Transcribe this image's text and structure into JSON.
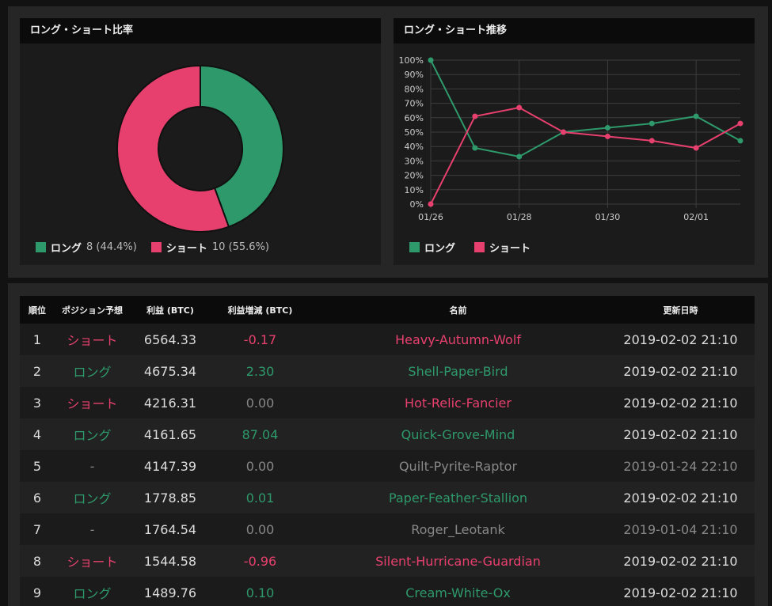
{
  "colors": {
    "long": "#2e9a6b",
    "short": "#e8406e",
    "neutral": "#888888"
  },
  "pie_panel": {
    "title": "ロング・ショート比率",
    "legend": [
      {
        "label": "ロング",
        "value": "8 (44.4%)"
      },
      {
        "label": "ショート",
        "value": "10 (55.6%)"
      }
    ]
  },
  "line_panel": {
    "title": "ロング・ショート推移",
    "legend": [
      {
        "label": "ロング"
      },
      {
        "label": "ショート"
      }
    ]
  },
  "chart_data": [
    {
      "type": "pie",
      "variant": "donut",
      "labels": [
        "ロング",
        "ショート"
      ],
      "values": [
        8,
        10
      ],
      "percent": [
        44.4,
        55.6
      ]
    },
    {
      "type": "line",
      "x": [
        0,
        1,
        2,
        3,
        4,
        5,
        6,
        7
      ],
      "x_tick_labels": [
        "01/26",
        "01/28",
        "01/30",
        "02/01"
      ],
      "ylim": [
        0,
        100
      ],
      "y_ticks": [
        "0%",
        "10%",
        "20%",
        "30%",
        "40%",
        "50%",
        "60%",
        "70%",
        "80%",
        "90%",
        "100%"
      ],
      "grid": true,
      "legend_position": "bottom-left",
      "series": [
        {
          "name": "ロング",
          "values": [
            100,
            39,
            33,
            50,
            53,
            56,
            61,
            44
          ]
        },
        {
          "name": "ショート",
          "values": [
            0,
            61,
            67,
            50,
            47,
            44,
            39,
            56
          ]
        }
      ]
    }
  ],
  "table": {
    "headers": [
      "順位",
      "ポジション予想",
      "利益 (BTC)",
      "利益増減 (BTC)",
      "名前",
      "更新日時"
    ],
    "rows": [
      {
        "rank": "1",
        "position": "ショート",
        "pos_kind": "short",
        "profit": "6564.33",
        "change": "-0.17",
        "change_kind": "short",
        "name": "Heavy-Autumn-Wolf",
        "name_kind": "short",
        "updated": "2019-02-02 21:10",
        "updated_kind": "normal"
      },
      {
        "rank": "2",
        "position": "ロング",
        "pos_kind": "long",
        "profit": "4675.34",
        "change": "2.30",
        "change_kind": "long",
        "name": "Shell-Paper-Bird",
        "name_kind": "long",
        "updated": "2019-02-02 21:10",
        "updated_kind": "normal"
      },
      {
        "rank": "3",
        "position": "ショート",
        "pos_kind": "short",
        "profit": "4216.31",
        "change": "0.00",
        "change_kind": "neutral",
        "name": "Hot-Relic-Fancier",
        "name_kind": "short",
        "updated": "2019-02-02 21:10",
        "updated_kind": "normal"
      },
      {
        "rank": "4",
        "position": "ロング",
        "pos_kind": "long",
        "profit": "4161.65",
        "change": "87.04",
        "change_kind": "long",
        "name": "Quick-Grove-Mind",
        "name_kind": "long",
        "updated": "2019-02-02 21:10",
        "updated_kind": "normal"
      },
      {
        "rank": "5",
        "position": "-",
        "pos_kind": "neutral",
        "profit": "4147.39",
        "change": "0.00",
        "change_kind": "neutral",
        "name": "Quilt-Pyrite-Raptor",
        "name_kind": "neutral",
        "updated": "2019-01-24 22:10",
        "updated_kind": "neutral"
      },
      {
        "rank": "6",
        "position": "ロング",
        "pos_kind": "long",
        "profit": "1778.85",
        "change": "0.01",
        "change_kind": "long",
        "name": "Paper-Feather-Stallion",
        "name_kind": "long",
        "updated": "2019-02-02 21:10",
        "updated_kind": "normal"
      },
      {
        "rank": "7",
        "position": "-",
        "pos_kind": "neutral",
        "profit": "1764.54",
        "change": "0.00",
        "change_kind": "neutral",
        "name": "Roger_Leotank",
        "name_kind": "neutral",
        "updated": "2019-01-04 21:10",
        "updated_kind": "neutral"
      },
      {
        "rank": "8",
        "position": "ショート",
        "pos_kind": "short",
        "profit": "1544.58",
        "change": "-0.96",
        "change_kind": "short",
        "name": "Silent-Hurricane-Guardian",
        "name_kind": "short",
        "updated": "2019-02-02 21:10",
        "updated_kind": "normal"
      },
      {
        "rank": "9",
        "position": "ロング",
        "pos_kind": "long",
        "profit": "1489.76",
        "change": "0.10",
        "change_kind": "long",
        "name": "Cream-White-Ox",
        "name_kind": "long",
        "updated": "2019-02-02 21:10",
        "updated_kind": "normal"
      }
    ]
  }
}
